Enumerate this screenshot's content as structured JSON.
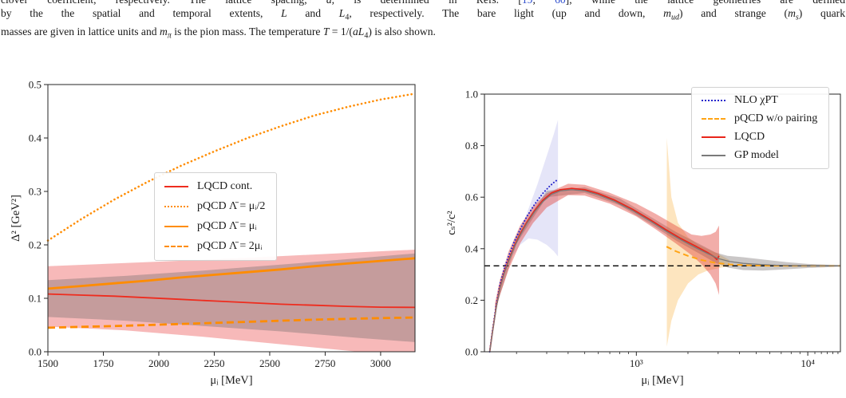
{
  "caption": {
    "link_color": "#2b4bcd",
    "lines": [
      {
        "segments": [
          {
            "t": "clover coefficient, respectively.  The lattice spacing, "
          },
          {
            "t": "a",
            "i": 1
          },
          {
            "t": ", is determined in Refs. ["
          },
          {
            "t": "19",
            "link": 1
          },
          {
            "t": ", "
          },
          {
            "t": "60",
            "link": 1
          },
          {
            "t": "], while the lattice geometries are defined"
          }
        ]
      },
      {
        "segments": [
          {
            "t": "by the the spatial and temporal extents, "
          },
          {
            "t": "L",
            "i": 1
          },
          {
            "t": " and "
          },
          {
            "t": "L",
            "i": 1
          },
          {
            "t": "4",
            "sub": 1
          },
          {
            "t": ", respectively.  The bare light (up and down, "
          },
          {
            "t": "m",
            "i": 1
          },
          {
            "t": "ud",
            "sub": 1,
            "i": 1
          },
          {
            "t": ") and strange ("
          },
          {
            "t": "m",
            "i": 1
          },
          {
            "t": "s",
            "sub": 1,
            "i": 1
          },
          {
            "t": ") quark"
          }
        ]
      },
      {
        "segments": [
          {
            "t": "masses are given in lattice units and "
          },
          {
            "t": "m",
            "i": 1
          },
          {
            "t": "π",
            "sub": 1,
            "i": 1
          },
          {
            "t": " is the pion mass.  The temperature "
          },
          {
            "t": "T",
            "i": 1
          },
          {
            "t": " = 1/("
          },
          {
            "t": "aL",
            "i": 1
          },
          {
            "t": "4",
            "sub": 1
          },
          {
            "t": ") is also shown."
          }
        ]
      }
    ]
  },
  "chart_data": [
    {
      "type": "line",
      "title": "",
      "xlabel": "μᵢ [MeV]",
      "ylabel": "Δ² [GeV²]",
      "xscale": "linear",
      "xlim": [
        1500,
        3155
      ],
      "ylim": [
        0,
        0.5
      ],
      "xticks": [
        1500,
        1750,
        2000,
        2250,
        2500,
        2750,
        3000
      ],
      "xtick_labels": [
        "1500",
        "1750",
        "2000",
        "2250",
        "2500",
        "2750",
        "3000"
      ],
      "yticks": [
        0.0,
        0.1,
        0.2,
        0.3,
        0.4,
        0.5
      ],
      "ytick_labels": [
        "0.0",
        "0.1",
        "0.2",
        "0.3",
        "0.4",
        "0.5"
      ],
      "grid": false,
      "legend_position": "center",
      "bands": [
        {
          "name": "lqcd-cont-uncertainty",
          "color": "rgba(240,128,128,0.55)",
          "x": [
            1500,
            1850,
            2200,
            2550,
            2900,
            3155
          ],
          "upper": [
            0.16,
            0.166,
            0.172,
            0.179,
            0.186,
            0.191
          ],
          "lower": [
            0.047,
            0.04,
            0.028,
            0.014,
            0.0,
            0.0
          ]
        },
        {
          "name": "gray-overlay-band",
          "color": "rgba(100,100,100,0.34)",
          "x": [
            1500,
            1850,
            2200,
            2550,
            2900,
            3155
          ],
          "upper": [
            0.134,
            0.142,
            0.152,
            0.163,
            0.175,
            0.184
          ],
          "lower": [
            0.065,
            0.058,
            0.048,
            0.038,
            0.026,
            0.018
          ]
        }
      ],
      "hlines": [],
      "series": [
        {
          "name": "LQCD cont.",
          "color": "#ee2c1e",
          "dash": "solid",
          "width": 1.8,
          "x": [
            1500,
            1650,
            1800,
            1950,
            2100,
            2250,
            2400,
            2550,
            2700,
            2850,
            3000,
            3155
          ],
          "y": [
            0.108,
            0.106,
            0.104,
            0.101,
            0.098,
            0.095,
            0.092,
            0.089,
            0.087,
            0.085,
            0.0835,
            0.083
          ]
        },
        {
          "name": "pQCD Λ̄ = μᵢ/2",
          "color": "#ff8c00",
          "dash": "dotted",
          "width": 2.6,
          "x": [
            1500,
            1650,
            1800,
            1950,
            2100,
            2250,
            2400,
            2550,
            2700,
            2850,
            3000,
            3155
          ],
          "y": [
            0.208,
            0.248,
            0.285,
            0.318,
            0.348,
            0.375,
            0.4,
            0.422,
            0.442,
            0.458,
            0.472,
            0.483
          ]
        },
        {
          "name": "pQCD Λ̄ = μᵢ",
          "color": "#ff8c00",
          "dash": "solid",
          "width": 2.8,
          "x": [
            1500,
            1650,
            1800,
            1950,
            2100,
            2250,
            2400,
            2550,
            2700,
            2850,
            3000,
            3155
          ],
          "y": [
            0.118,
            0.123,
            0.128,
            0.133,
            0.139,
            0.144,
            0.149,
            0.154,
            0.16,
            0.165,
            0.17,
            0.175
          ]
        },
        {
          "name": "pQCD Λ̄ = 2μᵢ",
          "color": "#ff8c00",
          "dash": "dashed",
          "width": 2.8,
          "x": [
            1500,
            1650,
            1800,
            1950,
            2100,
            2250,
            2400,
            2550,
            2700,
            2850,
            3000,
            3155
          ],
          "y": [
            0.045,
            0.0465,
            0.048,
            0.05,
            0.052,
            0.054,
            0.056,
            0.058,
            0.06,
            0.0615,
            0.063,
            0.064
          ]
        }
      ]
    },
    {
      "type": "line",
      "title": "",
      "xlabel": "μᵢ [MeV]",
      "ylabel": "cₛ²/c²",
      "xscale": "log",
      "xlim": [
        130,
        15500
      ],
      "ylim": [
        0,
        1.0
      ],
      "xticks": [
        1000,
        10000
      ],
      "xtick_labels": [
        "10³",
        "10⁴"
      ],
      "yticks": [
        0.0,
        0.2,
        0.4,
        0.6,
        0.8,
        1.0
      ],
      "ytick_labels": [
        "0.0",
        "0.2",
        "0.4",
        "0.6",
        "0.8",
        "1.0"
      ],
      "grid": false,
      "legend_position": "upper right",
      "bands": [
        {
          "name": "nlo-chipt-band",
          "color": "rgba(110,110,215,0.18)",
          "x": [
            192,
            210,
            235,
            265,
            300,
            330,
            349
          ],
          "upper": [
            0.4,
            0.47,
            0.555,
            0.65,
            0.76,
            0.845,
            0.9
          ],
          "lower": [
            0.375,
            0.415,
            0.44,
            0.435,
            0.415,
            0.39,
            0.37
          ]
        },
        {
          "name": "pqcd-band",
          "color": "rgba(250,175,60,0.33)",
          "x": [
            1505,
            1600,
            1750,
            2000,
            2300,
            2600,
            2900,
            3200,
            3500
          ],
          "upper": [
            0.83,
            0.6,
            0.5,
            0.445,
            0.415,
            0.398,
            0.385,
            0.37,
            0.355
          ],
          "lower": [
            0.02,
            0.12,
            0.2,
            0.265,
            0.3,
            0.315,
            0.322,
            0.328,
            0.331
          ]
        },
        {
          "name": "gp-model-band",
          "color": "rgba(115,108,108,0.38)",
          "x": [
            150,
            200,
            300,
            500,
            800,
            1200,
            1700,
            2300,
            2900,
            3400,
            4200,
            5500,
            7500,
            10000,
            15500
          ],
          "upper": [
            0.18,
            0.45,
            0.625,
            0.638,
            0.595,
            0.525,
            0.465,
            0.42,
            0.385,
            0.372,
            0.367,
            0.358,
            0.348,
            0.341,
            0.336
          ],
          "lower": [
            0.16,
            0.42,
            0.6,
            0.616,
            0.568,
            0.497,
            0.432,
            0.383,
            0.345,
            0.327,
            0.317,
            0.315,
            0.32,
            0.325,
            0.33
          ]
        },
        {
          "name": "lqcd-band",
          "color": "rgba(225,60,50,0.42)",
          "x": [
            150,
            160,
            180,
            210,
            250,
            300,
            400,
            500,
            700,
            1000,
            1300,
            1700,
            2100,
            2400,
            2700,
            2900,
            3040
          ],
          "upper": [
            0.19,
            0.28,
            0.39,
            0.49,
            0.565,
            0.615,
            0.652,
            0.648,
            0.617,
            0.575,
            0.535,
            0.49,
            0.455,
            0.45,
            0.455,
            0.465,
            0.49
          ],
          "lower": [
            0.15,
            0.22,
            0.32,
            0.42,
            0.5,
            0.56,
            0.608,
            0.606,
            0.575,
            0.525,
            0.475,
            0.42,
            0.375,
            0.34,
            0.3,
            0.265,
            0.22
          ]
        }
      ],
      "hlines": [
        {
          "name": "one-third-line",
          "y": 0.3333,
          "color": "#000000",
          "dash": "dashed",
          "width": 1.4
        }
      ],
      "series": [
        {
          "name": "NLO χPT",
          "color": "#2424cc",
          "dash": "dotted",
          "width": 2.0,
          "x": [
            139.6,
            145,
            152,
            160,
            170,
            180,
            195,
            210,
            230,
            255,
            285,
            310,
            330,
            349
          ],
          "y": [
            0,
            0.085,
            0.18,
            0.262,
            0.323,
            0.372,
            0.43,
            0.475,
            0.525,
            0.572,
            0.615,
            0.641,
            0.657,
            0.669
          ]
        },
        {
          "name": "pQCD w/o pairing",
          "color": "#ffa414",
          "dash": "dashed",
          "width": 2.0,
          "x": [
            1500,
            1700,
            2000,
            2400,
            2900,
            3500,
            4500,
            6000,
            9000,
            15500
          ],
          "y": [
            0.408,
            0.39,
            0.372,
            0.356,
            0.345,
            0.339,
            0.3355,
            0.334,
            0.3335,
            0.3333
          ]
        },
        {
          "name": "LQCD",
          "color": "#e8251a",
          "dash": "solid",
          "width": 1.7,
          "x": [
            139.6,
            145,
            152,
            160,
            170,
            180,
            195,
            210,
            230,
            255,
            285,
            320,
            360,
            420,
            500,
            600,
            750,
            950,
            1200,
            1500,
            1800,
            2200,
            2600,
            2850,
            2950,
            3040
          ],
          "y": [
            0,
            0.08,
            0.17,
            0.25,
            0.31,
            0.357,
            0.413,
            0.457,
            0.503,
            0.548,
            0.588,
            0.616,
            0.629,
            0.634,
            0.629,
            0.614,
            0.588,
            0.553,
            0.513,
            0.472,
            0.441,
            0.411,
            0.385,
            0.368,
            0.358,
            0.372
          ]
        },
        {
          "name": "GP model",
          "color": "#7a7a7a",
          "dash": "solid",
          "width": 1.3,
          "x": [
            139.6,
            145,
            152,
            160,
            170,
            180,
            195,
            210,
            230,
            255,
            285,
            320,
            360,
            420,
            500,
            600,
            750,
            950,
            1200,
            1500,
            1800,
            2200,
            2600,
            3000,
            3500,
            4200,
            5200,
            6500,
            8500,
            11000,
            15500
          ],
          "y": [
            0,
            0.078,
            0.167,
            0.246,
            0.306,
            0.352,
            0.408,
            0.452,
            0.498,
            0.543,
            0.583,
            0.611,
            0.624,
            0.629,
            0.624,
            0.609,
            0.583,
            0.548,
            0.508,
            0.467,
            0.436,
            0.405,
            0.381,
            0.362,
            0.35,
            0.343,
            0.339,
            0.336,
            0.3345,
            0.334,
            0.3333
          ]
        }
      ]
    }
  ]
}
